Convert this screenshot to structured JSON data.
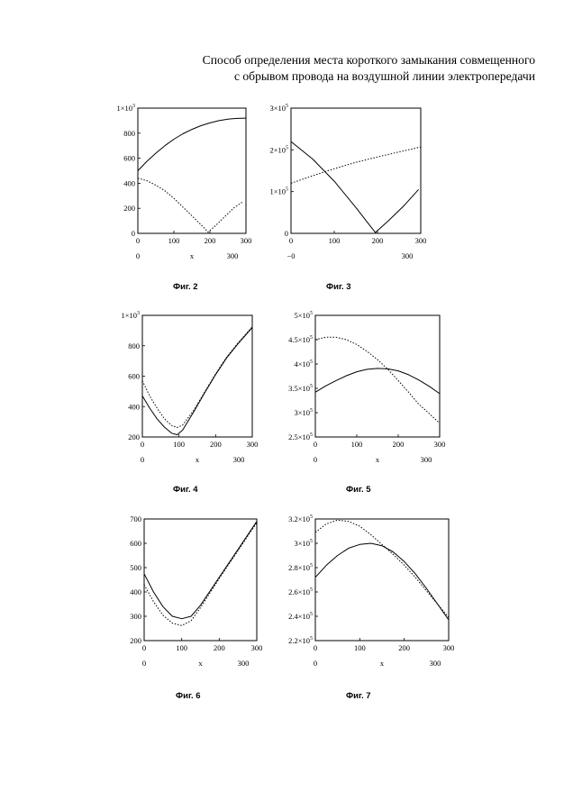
{
  "title_lines": [
    "Способ определения места короткого замыкания совмещенного",
    "с обрывом провода на воздушной линии электропередачи"
  ],
  "chart_data": [
    {
      "type": "line",
      "caption": "Фиг. 2",
      "xlabel": "x",
      "xlim": [
        0,
        300
      ],
      "ylim": [
        0,
        1000
      ],
      "x_ticks": [
        "0",
        "100",
        "200",
        "300"
      ],
      "x_range_labels": [
        "0",
        "300"
      ],
      "y_ticks": [
        {
          "v": 0,
          "t": "0"
        },
        {
          "v": 200,
          "t": "200"
        },
        {
          "v": 400,
          "t": "400"
        },
        {
          "v": 600,
          "t": "600"
        },
        {
          "v": 800,
          "t": "800"
        },
        {
          "v": 1000,
          "t": "1×10",
          "exp": "3"
        }
      ],
      "series": [
        {
          "style": "solid",
          "x": [
            0,
            25,
            50,
            75,
            100,
            125,
            150,
            175,
            200,
            225,
            250,
            275,
            300
          ],
          "y": [
            500,
            575,
            640,
            700,
            752,
            795,
            830,
            860,
            882,
            900,
            912,
            918,
            920
          ]
        },
        {
          "style": "dotted",
          "x": [
            0,
            25,
            50,
            75,
            100,
            125,
            150,
            175,
            195,
            215,
            240,
            265,
            290
          ],
          "y": [
            440,
            420,
            385,
            340,
            280,
            210,
            140,
            70,
            10,
            60,
            130,
            200,
            250
          ]
        }
      ]
    },
    {
      "type": "line",
      "caption": "Фиг. 3",
      "xlabel": "",
      "xlim": [
        0,
        300
      ],
      "ylim": [
        0,
        300000
      ],
      "x_ticks": [
        "0",
        "100",
        "200",
        "300"
      ],
      "x_range_labels": [
        "−0",
        "300"
      ],
      "y_ticks": [
        {
          "v": 0,
          "t": "0"
        },
        {
          "v": 100000,
          "t": "1×10",
          "exp": "5"
        },
        {
          "v": 200000,
          "t": "2×10",
          "exp": "5"
        },
        {
          "v": 300000,
          "t": "3×10",
          "exp": "5"
        }
      ],
      "series": [
        {
          "style": "solid",
          "x": [
            0,
            50,
            100,
            150,
            195,
            225,
            260,
            295
          ],
          "y": [
            220000,
            178000,
            125000,
            62000,
            2000,
            30000,
            65000,
            105000
          ]
        },
        {
          "style": "dotted",
          "x": [
            0,
            50,
            100,
            150,
            200,
            250,
            300
          ],
          "y": [
            120000,
            138000,
            155000,
            170000,
            183000,
            195000,
            207000
          ]
        }
      ]
    },
    {
      "type": "line",
      "caption": "Фиг. 4",
      "xlabel": "x",
      "xlim": [
        0,
        300
      ],
      "ylim": [
        200,
        1000
      ],
      "x_ticks": [
        "0",
        "100",
        "200",
        "300"
      ],
      "x_range_labels": [
        "0",
        "300"
      ],
      "y_ticks": [
        {
          "v": 200,
          "t": "200"
        },
        {
          "v": 400,
          "t": "400"
        },
        {
          "v": 600,
          "t": "600"
        },
        {
          "v": 800,
          "t": "800"
        },
        {
          "v": 1000,
          "t": "1×10",
          "exp": "3"
        }
      ],
      "series": [
        {
          "style": "solid",
          "x": [
            0,
            20,
            40,
            60,
            80,
            95,
            110,
            140,
            170,
            200,
            230,
            260,
            300
          ],
          "y": [
            470,
            390,
            320,
            265,
            225,
            215,
            245,
            365,
            490,
            610,
            720,
            810,
            920
          ]
        },
        {
          "style": "dotted",
          "x": [
            0,
            20,
            40,
            60,
            80,
            95,
            110,
            140,
            170,
            200,
            230,
            260,
            300
          ],
          "y": [
            570,
            470,
            390,
            320,
            275,
            262,
            278,
            375,
            495,
            615,
            725,
            815,
            925
          ]
        }
      ]
    },
    {
      "type": "line",
      "caption": "Фиг. 5",
      "xlabel": "x",
      "xlim": [
        0,
        300
      ],
      "ylim": [
        250000,
        500000
      ],
      "x_ticks": [
        "0",
        "100",
        "200",
        "300"
      ],
      "x_range_labels": [
        "0",
        "300"
      ],
      "y_ticks": [
        {
          "v": 250000,
          "t": "2.5×10",
          "exp": "5"
        },
        {
          "v": 300000,
          "t": "3×10",
          "exp": "5"
        },
        {
          "v": 350000,
          "t": "3.5×10",
          "exp": "5"
        },
        {
          "v": 400000,
          "t": "4×10",
          "exp": "5"
        },
        {
          "v": 450000,
          "t": "4.5×10",
          "exp": "5"
        },
        {
          "v": 500000,
          "t": "5×10",
          "exp": "5"
        }
      ],
      "series": [
        {
          "style": "solid",
          "x": [
            0,
            25,
            50,
            75,
            100,
            125,
            150,
            175,
            200,
            225,
            250,
            275,
            300
          ],
          "y": [
            342000,
            355000,
            366000,
            376000,
            384000,
            389000,
            391000,
            390000,
            386000,
            378000,
            367000,
            354000,
            339000
          ]
        },
        {
          "style": "dotted",
          "x": [
            0,
            25,
            50,
            75,
            100,
            125,
            150,
            175,
            200,
            225,
            250,
            275,
            300
          ],
          "y": [
            450000,
            455000,
            455000,
            450000,
            440000,
            426000,
            409000,
            389000,
            366000,
            342000,
            317000,
            298000,
            278000
          ]
        }
      ]
    },
    {
      "type": "line",
      "caption": "Фиг. 6",
      "xlabel": "x",
      "xlim": [
        0,
        300
      ],
      "ylim": [
        200,
        700
      ],
      "x_ticks": [
        "0",
        "100",
        "200",
        "300"
      ],
      "x_range_labels": [
        "0",
        "300"
      ],
      "y_ticks": [
        {
          "v": 200,
          "t": "200"
        },
        {
          "v": 300,
          "t": "300"
        },
        {
          "v": 400,
          "t": "400"
        },
        {
          "v": 500,
          "t": "500"
        },
        {
          "v": 600,
          "t": "600"
        },
        {
          "v": 700,
          "t": "700"
        }
      ],
      "series": [
        {
          "style": "solid",
          "x": [
            0,
            25,
            50,
            75,
            100,
            125,
            150,
            200,
            250,
            300
          ],
          "y": [
            475,
            400,
            340,
            300,
            290,
            300,
            345,
            460,
            575,
            690
          ]
        },
        {
          "style": "dotted",
          "x": [
            0,
            25,
            50,
            75,
            100,
            125,
            150,
            200,
            250,
            300
          ],
          "y": [
            430,
            360,
            305,
            272,
            262,
            282,
            335,
            455,
            570,
            685
          ]
        }
      ]
    },
    {
      "type": "line",
      "caption": "Фиг. 7",
      "xlabel": "x",
      "xlim": [
        0,
        300
      ],
      "ylim": [
        220000,
        320000
      ],
      "x_ticks": [
        "0",
        "100",
        "200",
        "300"
      ],
      "x_range_labels": [
        "0",
        "300"
      ],
      "y_ticks": [
        {
          "v": 220000,
          "t": "2.2×10",
          "exp": "5"
        },
        {
          "v": 240000,
          "t": "2.4×10",
          "exp": "5"
        },
        {
          "v": 260000,
          "t": "2.6×10",
          "exp": "5"
        },
        {
          "v": 280000,
          "t": "2.8×10",
          "exp": "5"
        },
        {
          "v": 300000,
          "t": "3×10",
          "exp": "5"
        },
        {
          "v": 320000,
          "t": "3.2×10",
          "exp": "5"
        }
      ],
      "series": [
        {
          "style": "solid",
          "x": [
            0,
            25,
            50,
            75,
            100,
            125,
            150,
            175,
            200,
            225,
            250,
            275,
            300
          ],
          "y": [
            272000,
            282000,
            290000,
            296000,
            299000,
            300000,
            298000,
            293000,
            285000,
            275000,
            263000,
            250000,
            237000
          ]
        },
        {
          "style": "dotted",
          "x": [
            0,
            25,
            50,
            75,
            100,
            125,
            150,
            175,
            200,
            225,
            250,
            275,
            300
          ],
          "y": [
            309000,
            316000,
            319000,
            318000,
            314000,
            307000,
            299000,
            291000,
            282000,
            272000,
            261000,
            250000,
            239000
          ]
        }
      ]
    }
  ]
}
